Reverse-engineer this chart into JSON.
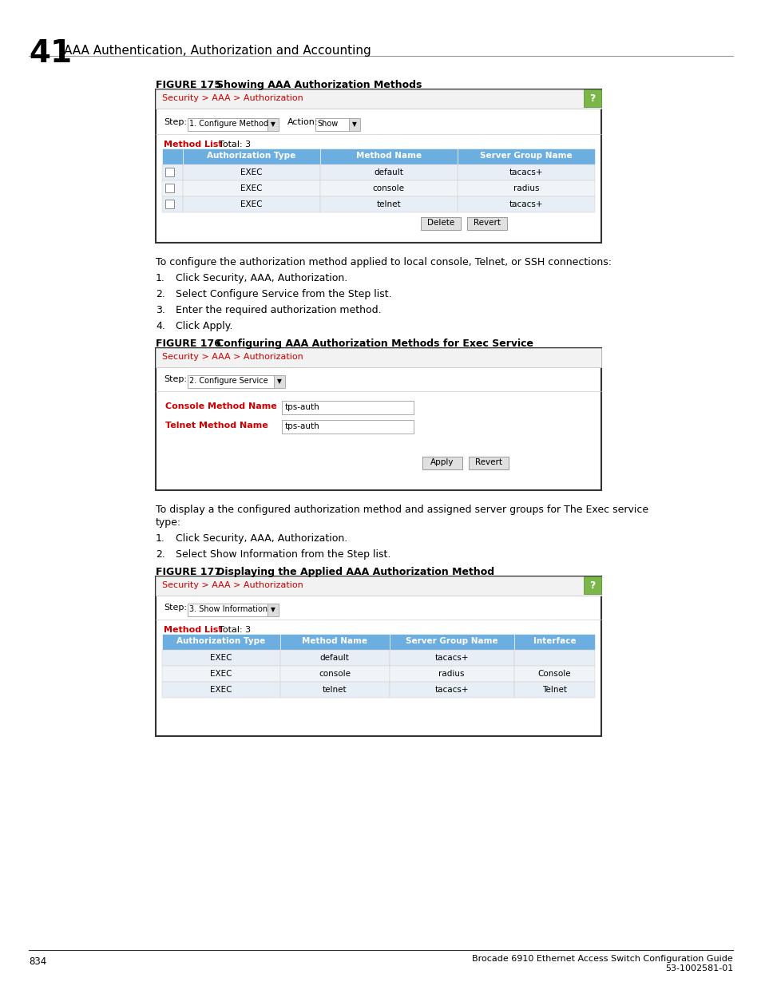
{
  "page_number": "834",
  "chapter_num": "41",
  "chapter_title": "AAA Authentication, Authorization and Accounting",
  "fig175_label": "FIGURE 175",
  "fig175_title": "   Showing AAA Authorization Methods",
  "fig176_label": "FIGURE 176",
  "fig176_title": "   Configuring AAA Authorization Methods for Exec Service",
  "fig177_label": "FIGURE 177",
  "fig177_title": "   Displaying the Applied AAA Authorization Method",
  "breadcrumb": "Security > AAA > Authorization",
  "bg_color": "#ffffff",
  "header_red": "#cc0000",
  "table_header_blue": "#6daee0",
  "green_btn": "#7ab648",
  "fig175_step_value": "1. Configure Method",
  "fig175_action_value": "Show",
  "fig175_method_list": "Method List",
  "fig175_total": "  Total: 3",
  "fig175_cols": [
    "",
    "Authorization Type",
    "Method Name",
    "Server Group Name"
  ],
  "fig175_rows": [
    [
      "EXEC",
      "default",
      "tacacs+"
    ],
    [
      "EXEC",
      "console",
      "radius"
    ],
    [
      "EXEC",
      "telnet",
      "tacacs+"
    ]
  ],
  "fig175_btn1": "Delete",
  "fig175_btn2": "Revert",
  "para1": "To configure the authorization method applied to local console, Telnet, or SSH connections:",
  "steps1": [
    "Click Security, AAA, Authorization.",
    "Select Configure Service from the Step list.",
    "Enter the required authorization method.",
    "Click Apply."
  ],
  "fig176_step_value": "2. Configure Service",
  "fig176_field1_label": "Console Method Name",
  "fig176_field1_value": "tps-auth",
  "fig176_field2_label": "Telnet Method Name",
  "fig176_field2_value": "tps-auth",
  "fig176_btn1": "Apply",
  "fig176_btn2": "Revert",
  "para2_line1": "To display a the configured authorization method and assigned server groups for The Exec service",
  "para2_line2": "type:",
  "steps2": [
    "Click Security, AAA, Authorization.",
    "Select Show Information from the Step list."
  ],
  "fig177_step_value": "3. Show Information",
  "fig177_method_list": "Method List",
  "fig177_total": "  Total: 3",
  "fig177_cols": [
    "Authorization Type",
    "Method Name",
    "Server Group Name",
    "Interface"
  ],
  "fig177_rows": [
    [
      "EXEC",
      "default",
      "tacacs+",
      ""
    ],
    [
      "EXEC",
      "console",
      "radius",
      "Console"
    ],
    [
      "EXEC",
      "telnet",
      "tacacs+",
      "Telnet"
    ]
  ],
  "footer_line1": "Brocade 6910 Ethernet Access Switch Configuration Guide",
  "footer_line2": "53-1002581-01"
}
